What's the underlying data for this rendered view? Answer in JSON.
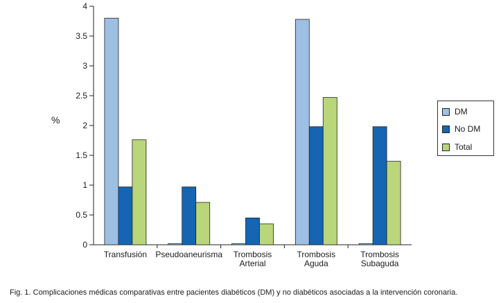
{
  "chart_data": {
    "type": "bar",
    "categories": [
      "Transfusión",
      "Pseudoaneurisma",
      "Trombosis\nArterial",
      "Trombosis\nAguda",
      "Trombosis\nSubaguda"
    ],
    "series": [
      {
        "name": "DM",
        "values": [
          3.8,
          0.02,
          0.02,
          3.78,
          0.02
        ],
        "color": "#9dbfe3"
      },
      {
        "name": "No DM",
        "values": [
          0.97,
          0.97,
          0.45,
          1.98,
          1.98
        ],
        "color": "#1565b3"
      },
      {
        "name": "Total",
        "values": [
          1.76,
          0.71,
          0.35,
          2.47,
          1.4
        ],
        "color": "#b9d67a"
      }
    ],
    "ylabel": "%",
    "ylim": [
      0,
      4
    ],
    "yticks": [
      "0",
      "0.5",
      "1",
      "1.5",
      "2",
      "2.5",
      "3",
      "3.5",
      "4"
    ],
    "grid": false,
    "legend_position": "right"
  },
  "caption": "Fig. 1. Complicaciones médicas comparativas entre  pacientes diabéticos (DM) y no diabéticos asociadas a la intervención coronaria."
}
